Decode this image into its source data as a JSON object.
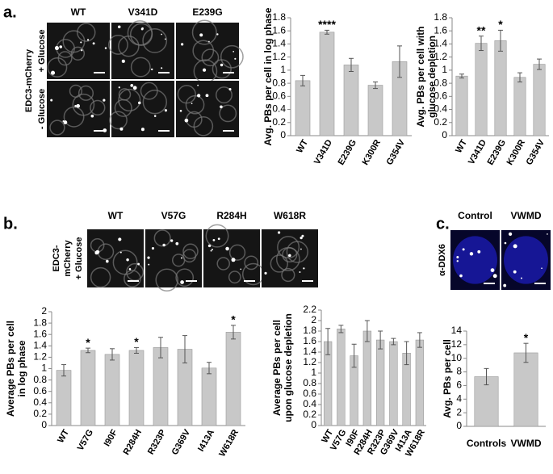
{
  "panel_labels": [
    "a.",
    "b.",
    "c."
  ],
  "image_groups": [
    {
      "columns": [
        "WT",
        "V341D",
        "E239G"
      ],
      "rows": [
        "+ Glucose",
        "- Glucose"
      ],
      "side_label": [
        "EDC3-mCherry"
      ]
    },
    {
      "columns": [
        "WT",
        "V57G",
        "R284H",
        "W618R"
      ],
      "rows": [],
      "side_label": [
        "EDC3-",
        "mCherry",
        "+ Glucose"
      ]
    },
    {
      "columns": [
        "Control",
        "VWMD"
      ],
      "rows": [],
      "side_label": [
        "α-DDX6"
      ]
    }
  ],
  "chart_data": [
    {
      "type": "bar",
      "ylabel": [
        "Avg. PBs per cell in log phase"
      ],
      "categories": [
        "WT",
        "V341D",
        "E239G",
        "K300R",
        "G354V"
      ],
      "values": [
        0.84,
        1.58,
        1.08,
        0.77,
        1.13
      ],
      "errors": [
        0.08,
        0.03,
        0.1,
        0.05,
        0.24
      ],
      "significance": [
        null,
        "****",
        null,
        null,
        null
      ],
      "color": "#c8c8c8",
      "ylim": [
        0,
        1.8
      ],
      "yticks": [
        0,
        0.2,
        0.4,
        0.6,
        0.8,
        1,
        1.2,
        1.4,
        1.6,
        1.8
      ]
    },
    {
      "type": "bar",
      "ylabel": [
        "Avg. PBs per cell with",
        "glucose depletion"
      ],
      "categories": [
        "WT",
        "V341D",
        "E239G",
        "K300R",
        "G354V"
      ],
      "values": [
        0.91,
        1.41,
        1.45,
        0.89,
        1.09
      ],
      "errors": [
        0.03,
        0.11,
        0.16,
        0.07,
        0.08
      ],
      "significance": [
        null,
        "**",
        "*",
        null,
        null
      ],
      "color": "#c8c8c8",
      "ylim": [
        0,
        1.8
      ],
      "yticks": [
        0,
        0.2,
        0.4,
        0.6,
        0.8,
        1,
        1.2,
        1.4,
        1.6,
        1.8
      ]
    },
    {
      "type": "bar",
      "ylabel": [
        "Average PBs per cell",
        "in log phase"
      ],
      "categories": [
        "WT",
        "V57G",
        "I90F",
        "R284H",
        "R323P",
        "G369V",
        "I413A",
        "W618R"
      ],
      "values": [
        0.97,
        1.32,
        1.25,
        1.32,
        1.37,
        1.34,
        1.01,
        1.64
      ],
      "errors": [
        0.1,
        0.04,
        0.1,
        0.05,
        0.18,
        0.24,
        0.1,
        0.12
      ],
      "significance": [
        null,
        "*",
        null,
        "*",
        null,
        null,
        null,
        "*"
      ],
      "color": "#c8c8c8",
      "ylim": [
        0,
        2
      ],
      "yticks": [
        0,
        0.2,
        0.4,
        0.6,
        0.8,
        1,
        1.2,
        1.4,
        1.6,
        1.8,
        2
      ]
    },
    {
      "type": "bar",
      "ylabel": [
        "Average PBs per cell",
        "upon glucose depletion"
      ],
      "categories": [
        "WT",
        "V57G",
        "I90F",
        "R284H",
        "R323P",
        "G369V",
        "I413A",
        "W618R"
      ],
      "values": [
        1.6,
        1.84,
        1.33,
        1.8,
        1.63,
        1.6,
        1.38,
        1.63
      ],
      "errors": [
        0.25,
        0.07,
        0.22,
        0.2,
        0.17,
        0.06,
        0.22,
        0.14
      ],
      "significance": [
        null,
        null,
        null,
        null,
        null,
        null,
        null,
        null
      ],
      "color": "#c8c8c8",
      "ylim": [
        0,
        2.2
      ],
      "yticks": [
        0,
        0.2,
        0.4,
        0.6,
        0.8,
        1,
        1.2,
        1.4,
        1.6,
        1.8,
        2,
        2.2
      ]
    },
    {
      "type": "bar",
      "ylabel": [
        "Avg. PBs per cell"
      ],
      "categories": [
        "Controls",
        "VWMD"
      ],
      "values": [
        7.3,
        10.8
      ],
      "errors": [
        1.2,
        1.4
      ],
      "significance": [
        null,
        "*"
      ],
      "color": "#c8c8c8",
      "ylim": [
        0,
        14
      ],
      "yticks": [
        0,
        2,
        4,
        6,
        8,
        10,
        12,
        14
      ]
    }
  ]
}
